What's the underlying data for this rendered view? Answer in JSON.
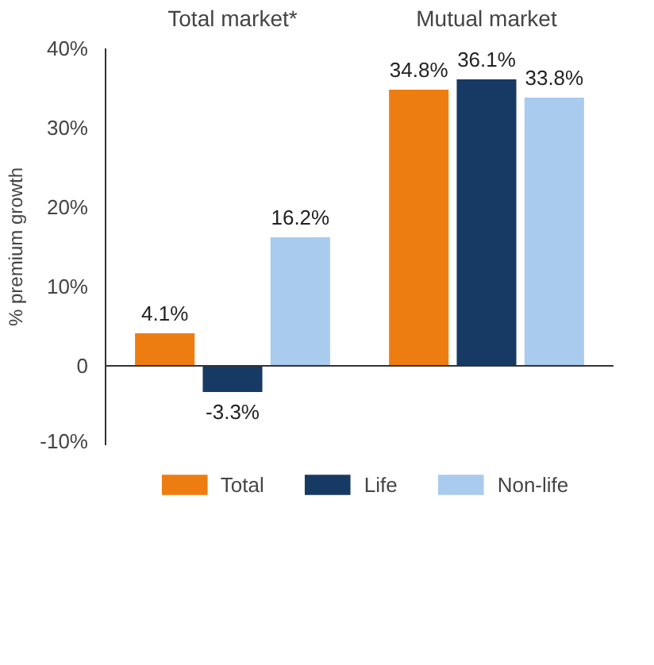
{
  "chart_data": {
    "type": "bar",
    "ylabel": "% premium growth",
    "categories": [
      "Total market*",
      "Mutual market"
    ],
    "series": [
      {
        "name": "Total",
        "color": "#ee7d11",
        "values": [
          4.1,
          34.8
        ],
        "value_labels": [
          "4.1%",
          "34.8%"
        ]
      },
      {
        "name": "Life",
        "color": "#173a64",
        "values": [
          -3.3,
          36.1
        ],
        "value_labels": [
          "-3.3%",
          "36.1%"
        ]
      },
      {
        "name": "Non-life",
        "color": "#a9cbee",
        "values": [
          16.2,
          33.8
        ],
        "value_labels": [
          "16.2%",
          "33.8%"
        ]
      }
    ],
    "ylim": [
      -10,
      40
    ],
    "yticks": [
      {
        "value": -10,
        "label": "-10%"
      },
      0,
      {
        "value": 10,
        "label": "10%"
      },
      {
        "value": 20,
        "label": "20%"
      },
      {
        "value": 30,
        "label": "30%"
      },
      {
        "value": 40,
        "label": "40%"
      }
    ],
    "legend": "bottom"
  }
}
